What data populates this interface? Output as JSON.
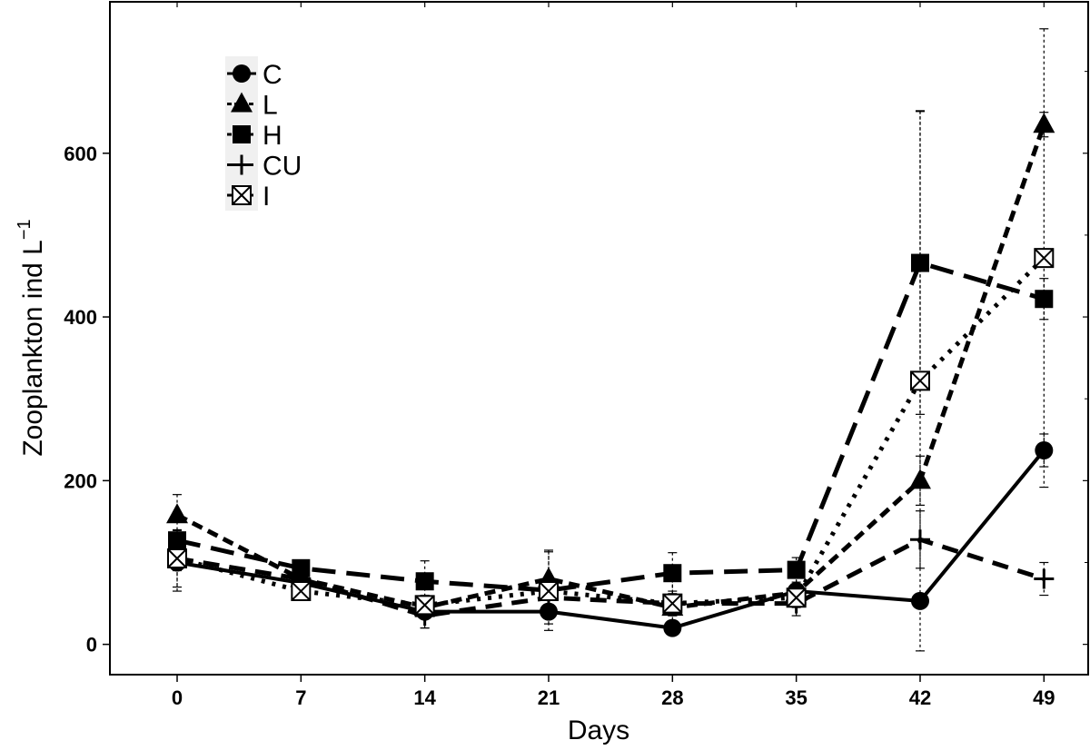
{
  "chart_data": {
    "type": "line",
    "title": "",
    "xlabel": "Days",
    "ylabel": "Zooplankton ind L",
    "ylabel_sup": "−1",
    "x": [
      0,
      7,
      14,
      21,
      28,
      35,
      42,
      49
    ],
    "x_ticks": [
      "0",
      "7",
      "14",
      "21",
      "28",
      "35",
      "42",
      "49"
    ],
    "y_ticks": [
      0,
      200,
      400,
      600
    ],
    "xlim": [
      -3.8,
      51.5
    ],
    "ylim": [
      -37,
      785
    ],
    "grid": false,
    "legend_position": "top-left",
    "series": [
      {
        "name": "C",
        "marker": "circle",
        "dash": "solid",
        "values": [
          100,
          75,
          40,
          40,
          20,
          65,
          53,
          237
        ],
        "errors": [
          35,
          12,
          20,
          15,
          5,
          20,
          5,
          20
        ]
      },
      {
        "name": "L",
        "marker": "triangle",
        "dash": "short-dash",
        "values": [
          158,
          80,
          45,
          80,
          45,
          63,
          200,
          635
        ],
        "errors": [
          25,
          10,
          10,
          35,
          10,
          10,
          30,
          15
        ]
      },
      {
        "name": "H",
        "marker": "square",
        "dash": "long-dash",
        "values": [
          127,
          93,
          77,
          66,
          87,
          91,
          466,
          422
        ],
        "errors": [
          12,
          8,
          25,
          10,
          25,
          15,
          185,
          25
        ]
      },
      {
        "name": "CU",
        "marker": "plus",
        "dash": "dash",
        "values": [
          105,
          80,
          35,
          57,
          50,
          50,
          128,
          80
        ],
        "errors": [
          35,
          12,
          15,
          15,
          15,
          15,
          35,
          20
        ]
      },
      {
        "name": "I",
        "marker": "boxed-x",
        "dash": "dotted",
        "values": [
          105,
          65,
          48,
          65,
          50,
          57,
          322,
          472
        ],
        "errors": [
          15,
          8,
          10,
          48,
          30,
          10,
          330,
          280
        ]
      }
    ]
  }
}
